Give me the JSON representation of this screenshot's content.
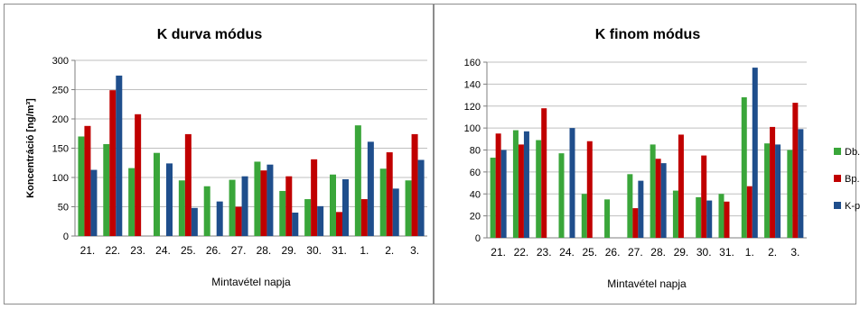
{
  "colors": {
    "Db.": "#3aa63a",
    "Bp.": "#c00000",
    "K-p.": "#1f4e8c",
    "axis": "#7f7f7f",
    "grid": "#bfbfbf"
  },
  "chart_data": [
    {
      "type": "bar",
      "title": "K durva módus",
      "xlabel": "Mintavétel napja",
      "ylabel": "Koncentráció [ng/m³]",
      "ylim": [
        0,
        300
      ],
      "yticks": [
        0,
        50,
        100,
        150,
        200,
        250,
        300
      ],
      "grid": true,
      "categories": [
        "21.",
        "22.",
        "23.",
        "24.",
        "25.",
        "26.",
        "27.",
        "28.",
        "29.",
        "30.",
        "31.",
        "1.",
        "2.",
        "3."
      ],
      "series": [
        {
          "name": "Db.",
          "values": [
            170,
            157,
            116,
            142,
            95,
            85,
            96,
            127,
            77,
            63,
            105,
            189,
            115,
            95
          ]
        },
        {
          "name": "Bp.",
          "values": [
            188,
            249,
            208,
            null,
            174,
            null,
            50,
            112,
            102,
            131,
            41,
            63,
            143,
            174
          ]
        },
        {
          "name": "K-p.",
          "values": [
            113,
            274,
            null,
            124,
            48,
            59,
            102,
            122,
            40,
            51,
            97,
            161,
            81,
            130
          ]
        }
      ]
    },
    {
      "type": "bar",
      "title": "K finom módus",
      "xlabel": "Mintavétel napja",
      "ylabel": "",
      "ylim": [
        0,
        160
      ],
      "yticks": [
        0,
        20,
        40,
        60,
        80,
        100,
        120,
        140,
        160
      ],
      "grid": true,
      "legend": "right",
      "categories": [
        "21.",
        "22.",
        "23.",
        "24.",
        "25.",
        "26.",
        "27.",
        "28.",
        "29.",
        "30.",
        "31.",
        "1.",
        "2.",
        "3."
      ],
      "series": [
        {
          "name": "Db.",
          "values": [
            73,
            98,
            89,
            77,
            40,
            35,
            58,
            85,
            43,
            37,
            40,
            128,
            86,
            80
          ]
        },
        {
          "name": "Bp.",
          "values": [
            95,
            85,
            118,
            null,
            88,
            null,
            27,
            72,
            94,
            75,
            33,
            47,
            101,
            123
          ]
        },
        {
          "name": "K-p.",
          "values": [
            80,
            97,
            null,
            100,
            null,
            null,
            52,
            68,
            null,
            34,
            null,
            155,
            85,
            99
          ]
        }
      ]
    }
  ]
}
